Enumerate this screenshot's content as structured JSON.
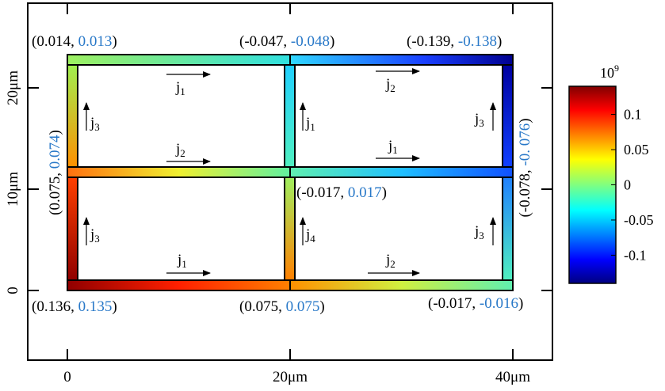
{
  "colors": {
    "blue_text": "#2878c8",
    "frame": "#000000"
  },
  "axes": {
    "x_ticks": [
      "0",
      "20μm",
      "40μm"
    ],
    "y_ticks": [
      "0",
      "10μm",
      "20μm"
    ]
  },
  "colorbar": {
    "exponent": "10",
    "exponent_power": "9",
    "ticks": [
      "0.1",
      "0.05",
      "0",
      "-0.05",
      "-0.1"
    ],
    "range": [
      -0.14,
      0.14
    ]
  },
  "node_labels": {
    "tl": {
      "a": "0.014",
      "b": "0.013"
    },
    "tm": {
      "a": "-0.047",
      "b": "-0.048"
    },
    "tr": {
      "a": "-0.139",
      "b": "-0.138"
    },
    "ml": {
      "a": "0.075",
      "b": "0.074"
    },
    "mm": {
      "a": "-0.017",
      "b": "0.017"
    },
    "mr": {
      "a": "-0.078",
      "b": "-0. 076"
    },
    "bl": {
      "a": "0.136",
      "b": "0.135"
    },
    "bm": {
      "a": "0.075",
      "b": "0.075"
    },
    "br": {
      "a": "-0.017",
      "b": "-0.016"
    }
  },
  "currents": {
    "top_left": "j",
    "top_left_sub": "1",
    "top_right": "j",
    "top_right_sub": "2",
    "mid_left": "j",
    "mid_left_sub": "2",
    "mid_right": "j",
    "mid_right_sub": "1",
    "bot_left": "j",
    "bot_left_sub": "1",
    "bot_right": "j",
    "bot_right_sub": "2",
    "vl_up": "j",
    "vl_up_sub": "3",
    "vl_dn": "j",
    "vl_dn_sub": "3",
    "vm_up": "j",
    "vm_up_sub": "1",
    "vm_dn": "j",
    "vm_dn_sub": "4",
    "vr_up": "j",
    "vr_up_sub": "3",
    "vr_dn": "j",
    "vr_dn_sub": "3"
  }
}
